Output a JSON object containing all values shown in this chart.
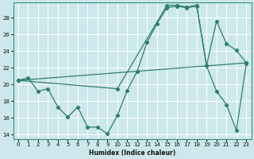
{
  "xlabel": "Humidex (Indice chaleur)",
  "bg_color": "#cce8ec",
  "grid_color": "#ffffff",
  "line_color": "#2e7d6e",
  "xlim": [
    -0.5,
    23.5
  ],
  "ylim": [
    13.5,
    29.8
  ],
  "yticks": [
    14,
    16,
    18,
    20,
    22,
    24,
    26,
    28
  ],
  "xticks": [
    0,
    1,
    2,
    3,
    4,
    5,
    6,
    7,
    8,
    9,
    10,
    11,
    12,
    13,
    14,
    15,
    16,
    17,
    18,
    19,
    20,
    21,
    22,
    23
  ],
  "line1_x": [
    0,
    1,
    2,
    3,
    4,
    5,
    6,
    7,
    8,
    9,
    10,
    11,
    12,
    13,
    14,
    15,
    16,
    17,
    18,
    19,
    20,
    21,
    22,
    23
  ],
  "line1_y": [
    20.5,
    20.8,
    19.2,
    19.5,
    17.3,
    16.1,
    17.3,
    14.9,
    14.9,
    14.1,
    16.3,
    19.3,
    21.6,
    25.1,
    27.3,
    29.2,
    29.4,
    29.2,
    29.4,
    22.3,
    27.6,
    24.9,
    24.1,
    22.6
  ],
  "line2_x": [
    0,
    10,
    15,
    16,
    17,
    18,
    19,
    20,
    21,
    22,
    23
  ],
  "line2_y": [
    20.5,
    19.5,
    29.5,
    29.5,
    29.3,
    29.5,
    22.2,
    19.2,
    17.6,
    14.5,
    22.5
  ],
  "line3_x": [
    0,
    23
  ],
  "line3_y": [
    20.5,
    22.6
  ]
}
